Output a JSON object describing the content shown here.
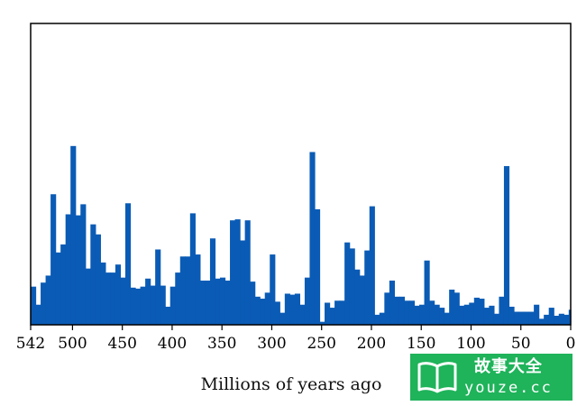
{
  "chart_data": {
    "type": "bar",
    "title": "",
    "xlabel": "Millions of years ago",
    "ylabel": "",
    "xlim": [
      542,
      0
    ],
    "x_reversed": true,
    "xticks": [
      542,
      500,
      450,
      400,
      350,
      300,
      250,
      200,
      150,
      100,
      50,
      0
    ],
    "xtick_labels": [
      "542",
      "500",
      "450",
      "400",
      "350",
      "300",
      "250",
      "200",
      "150",
      "100",
      "50",
      "0"
    ],
    "ylim": [
      0,
      30
    ],
    "yticks": [],
    "grid": false,
    "color": "#0a5bb5",
    "series": [
      {
        "bin_start": [
          542,
          537,
          532,
          527,
          522,
          517,
          512,
          507,
          502,
          497,
          492,
          487,
          482,
          477,
          472,
          467,
          462,
          457,
          452,
          447,
          442,
          437,
          432,
          427,
          422,
          417,
          412,
          407,
          402,
          397,
          392,
          387,
          382,
          377,
          372,
          367,
          362,
          357,
          352,
          347,
          342,
          337,
          332,
          327,
          322,
          317,
          312,
          307,
          302,
          297,
          292,
          287,
          282,
          277,
          272,
          267,
          262,
          257,
          252,
          247,
          242,
          237,
          232,
          227,
          222,
          217,
          212,
          207,
          202,
          197,
          192,
          187,
          182,
          177,
          172,
          167,
          162,
          157,
          152,
          147,
          142,
          137,
          132,
          127,
          122,
          117,
          112,
          107,
          102,
          97,
          92,
          87,
          82,
          77,
          72,
          67,
          62,
          57,
          52,
          47,
          42,
          37,
          32,
          27,
          22,
          17,
          12,
          7,
          2
        ],
        "bin_width": 5,
        "values": [
          3.8,
          2.0,
          4.2,
          4.9,
          13.0,
          7.2,
          8.0,
          11.0,
          17.8,
          10.9,
          12.0,
          5.6,
          10.0,
          9.0,
          6.2,
          5.2,
          5.2,
          6.0,
          4.7,
          12.1,
          3.7,
          3.6,
          3.8,
          4.6,
          3.9,
          7.5,
          3.9,
          1.8,
          3.8,
          5.2,
          6.8,
          6.8,
          11.1,
          7.0,
          4.4,
          4.4,
          8.6,
          4.6,
          4.7,
          4.4,
          10.4,
          10.5,
          8.4,
          10.4,
          4.3,
          2.8,
          2.6,
          3.2,
          7.0,
          2.3,
          1.2,
          3.1,
          3.0,
          3.1,
          2.0,
          4.7,
          17.2,
          11.5,
          0.3,
          2.2,
          1.7,
          2.4,
          2.4,
          8.2,
          7.6,
          5.5,
          4.9,
          7.4,
          11.8,
          1.0,
          1.2,
          3.2,
          4.4,
          2.8,
          2.8,
          2.4,
          2.4,
          1.9,
          2.0,
          6.4,
          2.4,
          2.0,
          1.7,
          1.2,
          3.5,
          3.2,
          1.9,
          2.0,
          2.2,
          2.7,
          2.6,
          1.7,
          1.9,
          1.1,
          2.8,
          15.8,
          1.8,
          1.3,
          1.3,
          1.3,
          1.3,
          2.0,
          0.6,
          1.0,
          1.7,
          0.9,
          1.1,
          1.0,
          1.5
        ]
      }
    ]
  },
  "watermark": {
    "text_cn": "故事大全",
    "text_url": "youze.cc"
  }
}
